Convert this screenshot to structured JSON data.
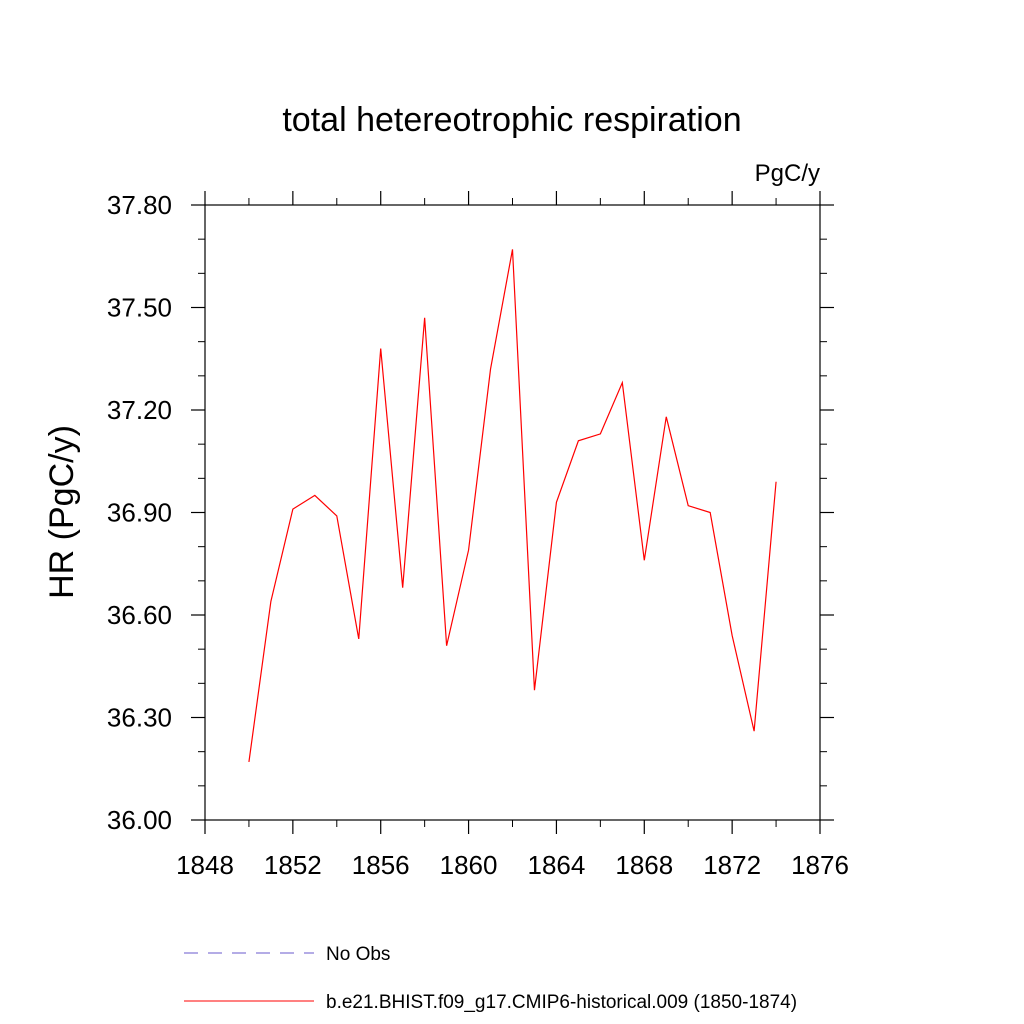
{
  "chart_data": {
    "type": "line",
    "title": "total hetereotrophic respiration",
    "units": "PgC/y",
    "ylabel": "HR  (PgC/y)",
    "xlabel": "",
    "xlim": [
      1848,
      1876
    ],
    "ylim": [
      36.0,
      37.8
    ],
    "x_ticks": [
      "1848",
      "1852",
      "1856",
      "1860",
      "1864",
      "1868",
      "1872",
      "1876"
    ],
    "y_ticks": [
      "36.00",
      "36.30",
      "36.60",
      "36.90",
      "37.20",
      "37.50",
      "37.80"
    ],
    "x_minor_step": 2,
    "y_minor_step": 0.1,
    "grid": false,
    "legend_position": "bottom",
    "series": [
      {
        "name": "b.e21.BHIST.f09_g17.CMIP6-historical.009 (1850-1874)",
        "color": "#ff0000",
        "style": "solid",
        "x": [
          1850,
          1851,
          1852,
          1853,
          1854,
          1855,
          1856,
          1857,
          1858,
          1859,
          1860,
          1861,
          1862,
          1863,
          1864,
          1865,
          1866,
          1867,
          1868,
          1869,
          1870,
          1871,
          1872,
          1873,
          1874
        ],
        "y": [
          36.17,
          36.64,
          36.91,
          36.95,
          36.89,
          36.53,
          37.38,
          36.68,
          37.47,
          36.51,
          36.79,
          37.32,
          37.67,
          36.38,
          36.93,
          37.11,
          37.13,
          37.28,
          36.76,
          37.18,
          36.92,
          36.9,
          36.54,
          36.26,
          36.99
        ]
      }
    ],
    "legend": [
      {
        "label": "No Obs",
        "color": "#6a5acd",
        "style": "dashed"
      },
      {
        "label": "b.e21.BHIST.f09_g17.CMIP6-historical.009 (1850-1874)",
        "color": "#ff0000",
        "style": "solid"
      }
    ]
  }
}
